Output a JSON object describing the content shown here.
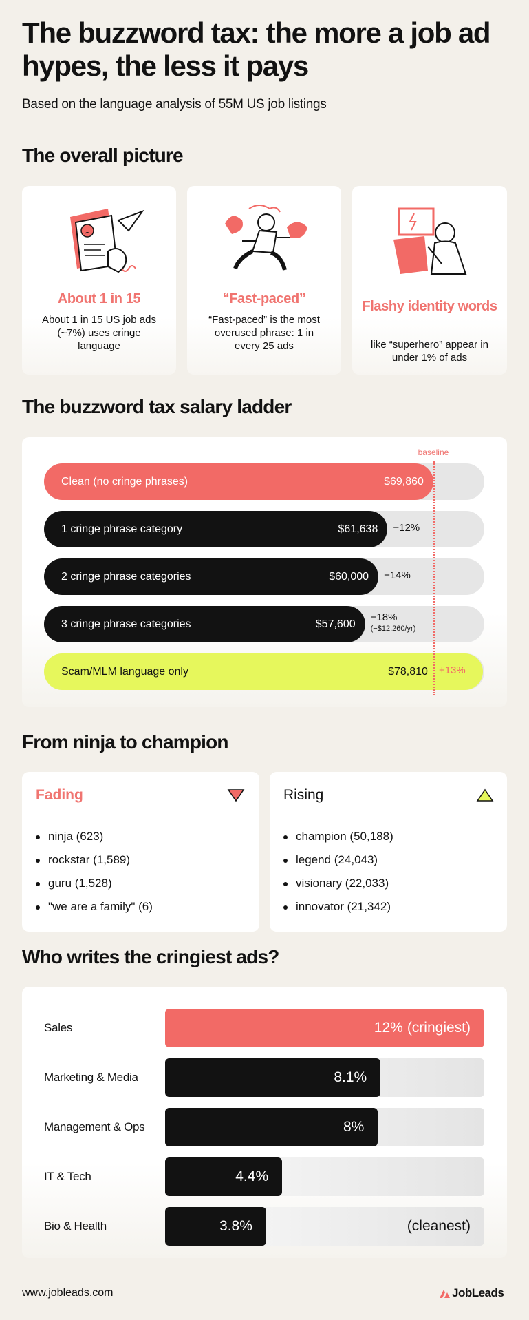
{
  "header": {
    "title": "The buzzword tax: the more a job ad hypes, the less it pays",
    "subtitle": "Based on the language analysis of 55M US job listings"
  },
  "overview": {
    "heading": "The overall picture",
    "cards": [
      {
        "title": "About 1 in 15",
        "text": "About 1 in 15 US job ads (~7%) uses cringe language"
      },
      {
        "title": "“Fast-paced”",
        "text": "“Fast-paced” is the most overused phrase: 1 in every 25 ads"
      },
      {
        "title": "Flashy identity words",
        "text": "like “superhero” appear in under 1% of ads"
      }
    ]
  },
  "ladder": {
    "heading": "The buzzword tax salary ladder",
    "type": "bar",
    "xlim": [
      0,
      79000
    ],
    "baseline": 69860,
    "baseline_label": "baseline",
    "rows": [
      {
        "label": "Clean (no cringe phrases)",
        "value": 69860,
        "value_label": "$69,860",
        "color": "#f26a66"
      },
      {
        "label": "1 cringe phrase category",
        "value": 61638,
        "value_label": "$61,638",
        "color": "#121212",
        "delta": -12,
        "delta_label": "−12%"
      },
      {
        "label": "2 cringe phrase categories",
        "value": 60000,
        "value_label": "$60,000",
        "color": "#121212",
        "delta": -14,
        "delta_label": "−14%"
      },
      {
        "label": "3 cringe phrase categories",
        "value": 57600,
        "value_label": "$57,600",
        "color": "#121212",
        "delta": -18,
        "delta_label": "−18%",
        "delta_note": "(−$12,260/yr)"
      },
      {
        "label": "Scam/MLM language only",
        "value": 78810,
        "value_label": "$78,810",
        "color": "#e6f75c",
        "delta": 13,
        "delta_label": "+13%"
      }
    ]
  },
  "trends": {
    "heading": "From ninja to champion",
    "fading": {
      "title": "Fading",
      "items": [
        "ninja (623)",
        "rockstar (1,589)",
        "guru (1,528)",
        "\"we are a family\" (6)"
      ]
    },
    "rising": {
      "title": "Rising",
      "items": [
        "champion (50,188)",
        "legend (24,043)",
        "visionary (22,033)",
        "innovator (21,342)"
      ]
    }
  },
  "sectors": {
    "heading": "Who writes the cringiest ads?",
    "type": "bar",
    "xlim": [
      0,
      12
    ],
    "rows": [
      {
        "label": "Sales",
        "value": 12,
        "value_label": "12%",
        "note": "(cringiest)",
        "color": "#f26a66"
      },
      {
        "label": "Marketing & Media",
        "value": 8.1,
        "value_label": "8.1%",
        "color": "#121212"
      },
      {
        "label": "Management & Ops",
        "value": 8,
        "value_label": "8%",
        "color": "#121212"
      },
      {
        "label": "IT & Tech",
        "value": 4.4,
        "value_label": "4.4%",
        "color": "#121212"
      },
      {
        "label": "Bio & Health",
        "value": 3.8,
        "value_label": "3.8%",
        "note": "(cleanest)",
        "color": "#121212"
      }
    ]
  },
  "footer": {
    "url": "www.jobleads.com",
    "brand": "JobLeads"
  }
}
